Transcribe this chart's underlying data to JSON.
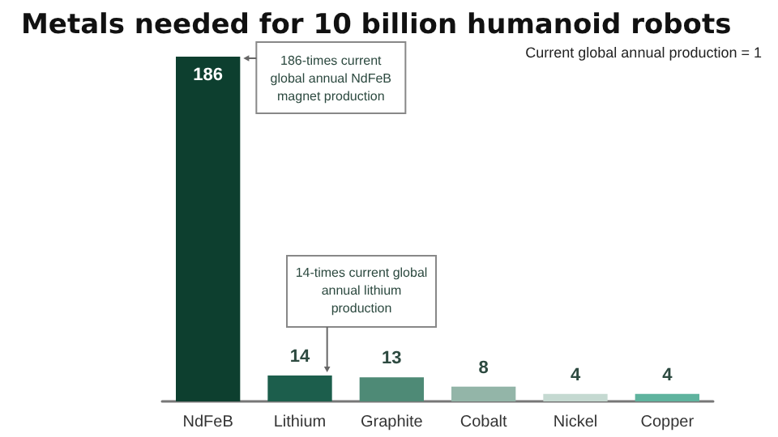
{
  "chart_data": {
    "type": "bar",
    "title": "Metals needed for 10 billion humanoid robots",
    "categories": [
      "NdFeB",
      "Lithium",
      "Graphite",
      "Cobalt",
      "Nickel",
      "Copper"
    ],
    "values": [
      186,
      14,
      13,
      8,
      4,
      4
    ],
    "colors": [
      "#0d3f2f",
      "#1c5e4c",
      "#4e8a76",
      "#93b5a8",
      "#c5d9d1",
      "#5fb39e"
    ],
    "data_labels": true,
    "grid": false,
    "annotations": [
      "Current global annual production = 1",
      "186-times current global annual NdFeB magnet production",
      "14-times current global annual lithium production"
    ]
  }
}
